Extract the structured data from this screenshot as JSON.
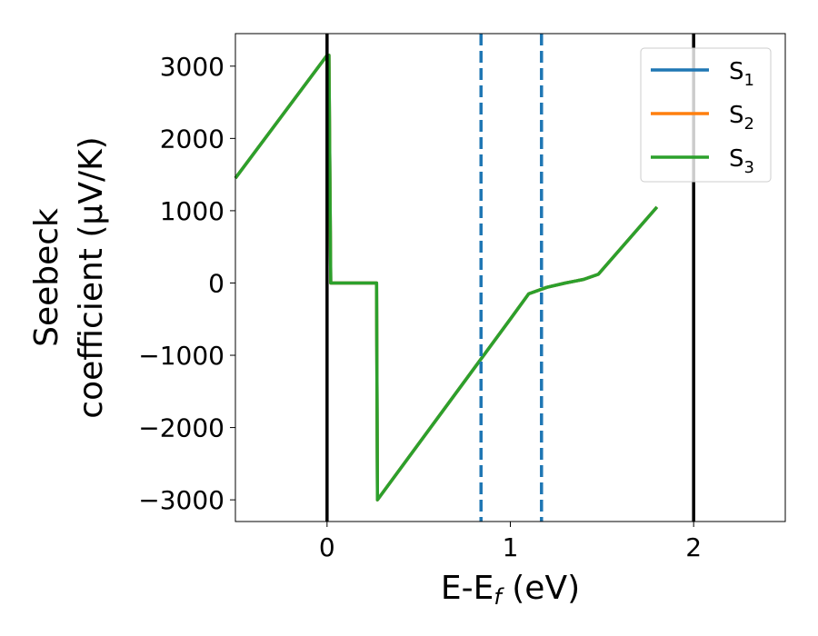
{
  "chart_data": {
    "type": "line",
    "xlabel": "E-E",
    "xlabel_sub": "f",
    "xlabel_unit": " (eV)",
    "ylabel_line1": "Seebeck",
    "ylabel_line2": "coefficient  (μV/K)",
    "xlim": [
      -0.5,
      2.5
    ],
    "ylim": [
      -3300,
      3450
    ],
    "xticks": [
      0,
      1,
      2
    ],
    "xtick_labels": [
      "0",
      "1",
      "2"
    ],
    "yticks": [
      3000,
      2000,
      1000,
      0,
      -1000,
      -2000,
      -3000
    ],
    "ytick_labels": [
      "3000",
      "2000",
      "1000",
      "0",
      "−1000",
      "−2000",
      "−3000"
    ],
    "grid": false,
    "legend_position": "top-right",
    "vlines": [
      {
        "x": 0,
        "style": "solid",
        "color": "#000000"
      },
      {
        "x": 2,
        "style": "solid",
        "color": "#000000"
      },
      {
        "x": 0.84,
        "style": "dashed",
        "color": "#1f77b4"
      },
      {
        "x": 1.17,
        "style": "dashed",
        "color": "#1f77b4"
      }
    ],
    "series": [
      {
        "name": "S",
        "sub": "1",
        "color": "#1f77b4",
        "x": [
          -0.5,
          0.0,
          0.01,
          0.02,
          0.27,
          0.275,
          1.0,
          1.1,
          1.2,
          1.3,
          1.4,
          1.48,
          1.8
        ],
        "y": [
          1450,
          3150,
          3150,
          0,
          0,
          -3000,
          -500,
          -150,
          -60,
          0,
          50,
          120,
          1050
        ]
      },
      {
        "name": "S",
        "sub": "2",
        "color": "#ff7f0e",
        "x": [
          -0.5,
          0.0,
          0.01,
          0.02,
          0.27,
          0.275,
          1.0,
          1.1,
          1.2,
          1.3,
          1.4,
          1.48,
          1.8
        ],
        "y": [
          1450,
          3150,
          3150,
          0,
          0,
          -3000,
          -500,
          -150,
          -60,
          0,
          50,
          120,
          1050
        ]
      },
      {
        "name": "S",
        "sub": "3",
        "color": "#2ca02c",
        "x": [
          -0.5,
          0.0,
          0.01,
          0.02,
          0.27,
          0.275,
          1.0,
          1.1,
          1.2,
          1.3,
          1.4,
          1.48,
          1.8
        ],
        "y": [
          1450,
          3150,
          3150,
          0,
          0,
          -3000,
          -500,
          -150,
          -60,
          0,
          50,
          120,
          1050
        ]
      }
    ]
  }
}
